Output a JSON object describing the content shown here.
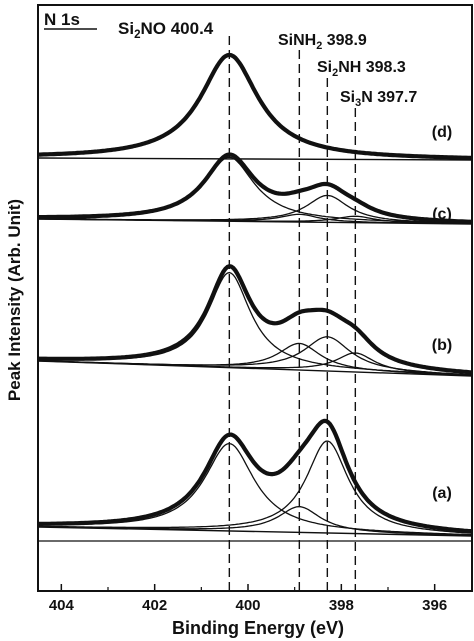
{
  "chart_data": {
    "type": "line",
    "title": "N 1s",
    "xlabel": "Binding Energy (eV)",
    "ylabel": "Peak Intensity (Arb. Unit)",
    "xlim": [
      404.5,
      395.2
    ],
    "x_reversed": true,
    "xticks": [
      404,
      402,
      400,
      398,
      396
    ],
    "grid": false,
    "reference_lines": [
      {
        "name": "Si2NO",
        "sub": "2",
        "prefix": "Si",
        "suffix": "NO",
        "value": 400.4,
        "label_value": "400.4"
      },
      {
        "name": "SiNH2",
        "sub": "2",
        "prefix": "SiNH",
        "suffix": "",
        "value": 398.9,
        "label_value": "398.9"
      },
      {
        "name": "Si2NH",
        "sub": "2",
        "prefix": "Si",
        "suffix": "NH",
        "value": 398.3,
        "label_value": "398.3"
      },
      {
        "name": "Si3N",
        "sub": "3",
        "prefix": "Si",
        "suffix": "N",
        "value": 397.7,
        "label_value": "397.7"
      }
    ],
    "spectra": [
      {
        "label": "(a)",
        "baseline_relative": true,
        "envelope_weight": "bold",
        "components": [
          {
            "center": 400.4,
            "height": 0.95,
            "width": 0.65
          },
          {
            "center": 398.9,
            "height": 0.28,
            "width": 0.55
          },
          {
            "center": 398.3,
            "height": 1.0,
            "width": 0.55
          }
        ]
      },
      {
        "label": "(b)",
        "baseline_relative": true,
        "envelope_weight": "bold",
        "components": [
          {
            "center": 400.4,
            "height": 1.0,
            "width": 0.55
          },
          {
            "center": 398.9,
            "height": 0.28,
            "width": 0.55
          },
          {
            "center": 398.3,
            "height": 0.36,
            "width": 0.6
          },
          {
            "center": 397.7,
            "height": 0.2,
            "width": 0.5
          }
        ]
      },
      {
        "label": "(c)",
        "baseline_relative": true,
        "envelope_weight": "bold",
        "components": [
          {
            "center": 400.4,
            "height": 1.0,
            "width": 0.65
          },
          {
            "center": 398.9,
            "height": 0.12,
            "width": 0.5
          },
          {
            "center": 398.3,
            "height": 0.42,
            "width": 0.55
          },
          {
            "center": 397.7,
            "height": 0.1,
            "width": 0.5
          }
        ]
      },
      {
        "label": "(d)",
        "baseline_relative": true,
        "envelope_weight": "bold",
        "components": [
          {
            "center": 400.4,
            "height": 1.0,
            "width": 0.75
          }
        ]
      }
    ]
  }
}
